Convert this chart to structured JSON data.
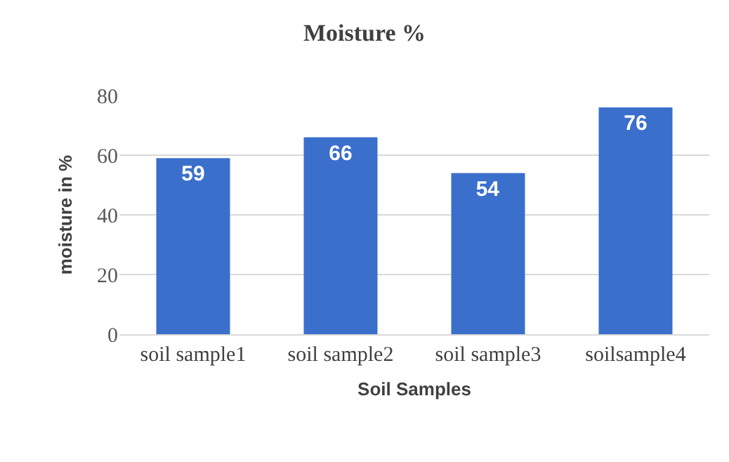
{
  "chart_data": {
    "type": "bar",
    "title": "Moisture %",
    "xlabel": "Soil Samples",
    "ylabel": "moisture in %",
    "categories": [
      "soil sample1",
      "soil sample2",
      "soil sample3",
      "soilsample4"
    ],
    "values": [
      59,
      66,
      54,
      76
    ],
    "color": "#3b6fcc",
    "ylim": [
      0,
      80
    ],
    "yticks": [
      0,
      20,
      40,
      60,
      80
    ],
    "grid": "y",
    "data_labels": true
  }
}
